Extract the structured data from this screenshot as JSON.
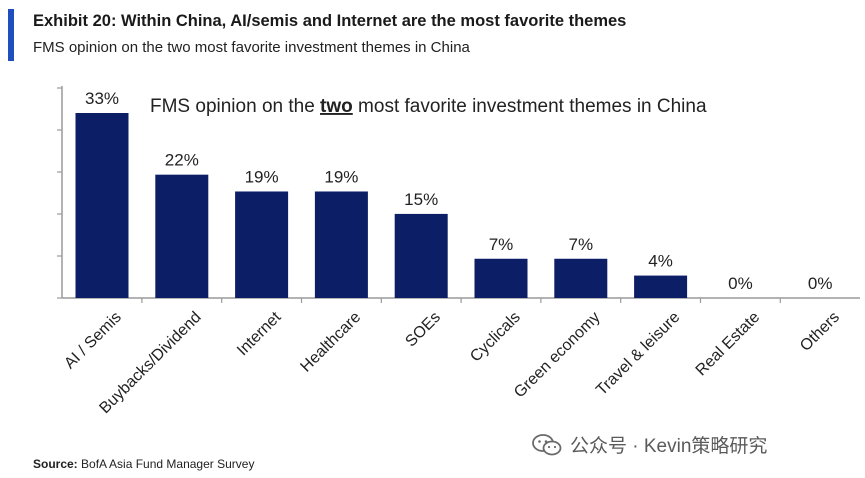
{
  "header": {
    "title": "Exhibit 20: Within China, AI/semis and Internet are the most favorite themes",
    "subtitle": "FMS opinion on the two most favorite investment themes in China",
    "accent_color": "#1f4fbf"
  },
  "chart_data": {
    "type": "bar",
    "title_parts": [
      "FMS opinion on the ",
      "two",
      " most favorite investment themes in China"
    ],
    "categories": [
      "AI / Semis",
      "Buybacks/Dividend",
      "Internet",
      "Healthcare",
      "SOEs",
      "Cyclicals",
      "Green economy",
      "Travel & leisure",
      "Real Estate",
      "Others"
    ],
    "values": [
      33,
      22,
      19,
      19,
      15,
      7,
      7,
      4,
      0,
      0
    ],
    "data_labels": [
      "33%",
      "22%",
      "19%",
      "19%",
      "15%",
      "7%",
      "7%",
      "4%",
      "0%",
      "0%"
    ],
    "ylim": [
      0,
      35
    ],
    "bar_color": "#0c1f66",
    "grid": false,
    "legend": "none"
  },
  "footer": {
    "source_label": "Source:",
    "source_text": " BofA Asia Fund Manager Survey",
    "watermark_text": "公众号 · Kevin策略研究",
    "watermark_icon": "wechat-icon"
  }
}
